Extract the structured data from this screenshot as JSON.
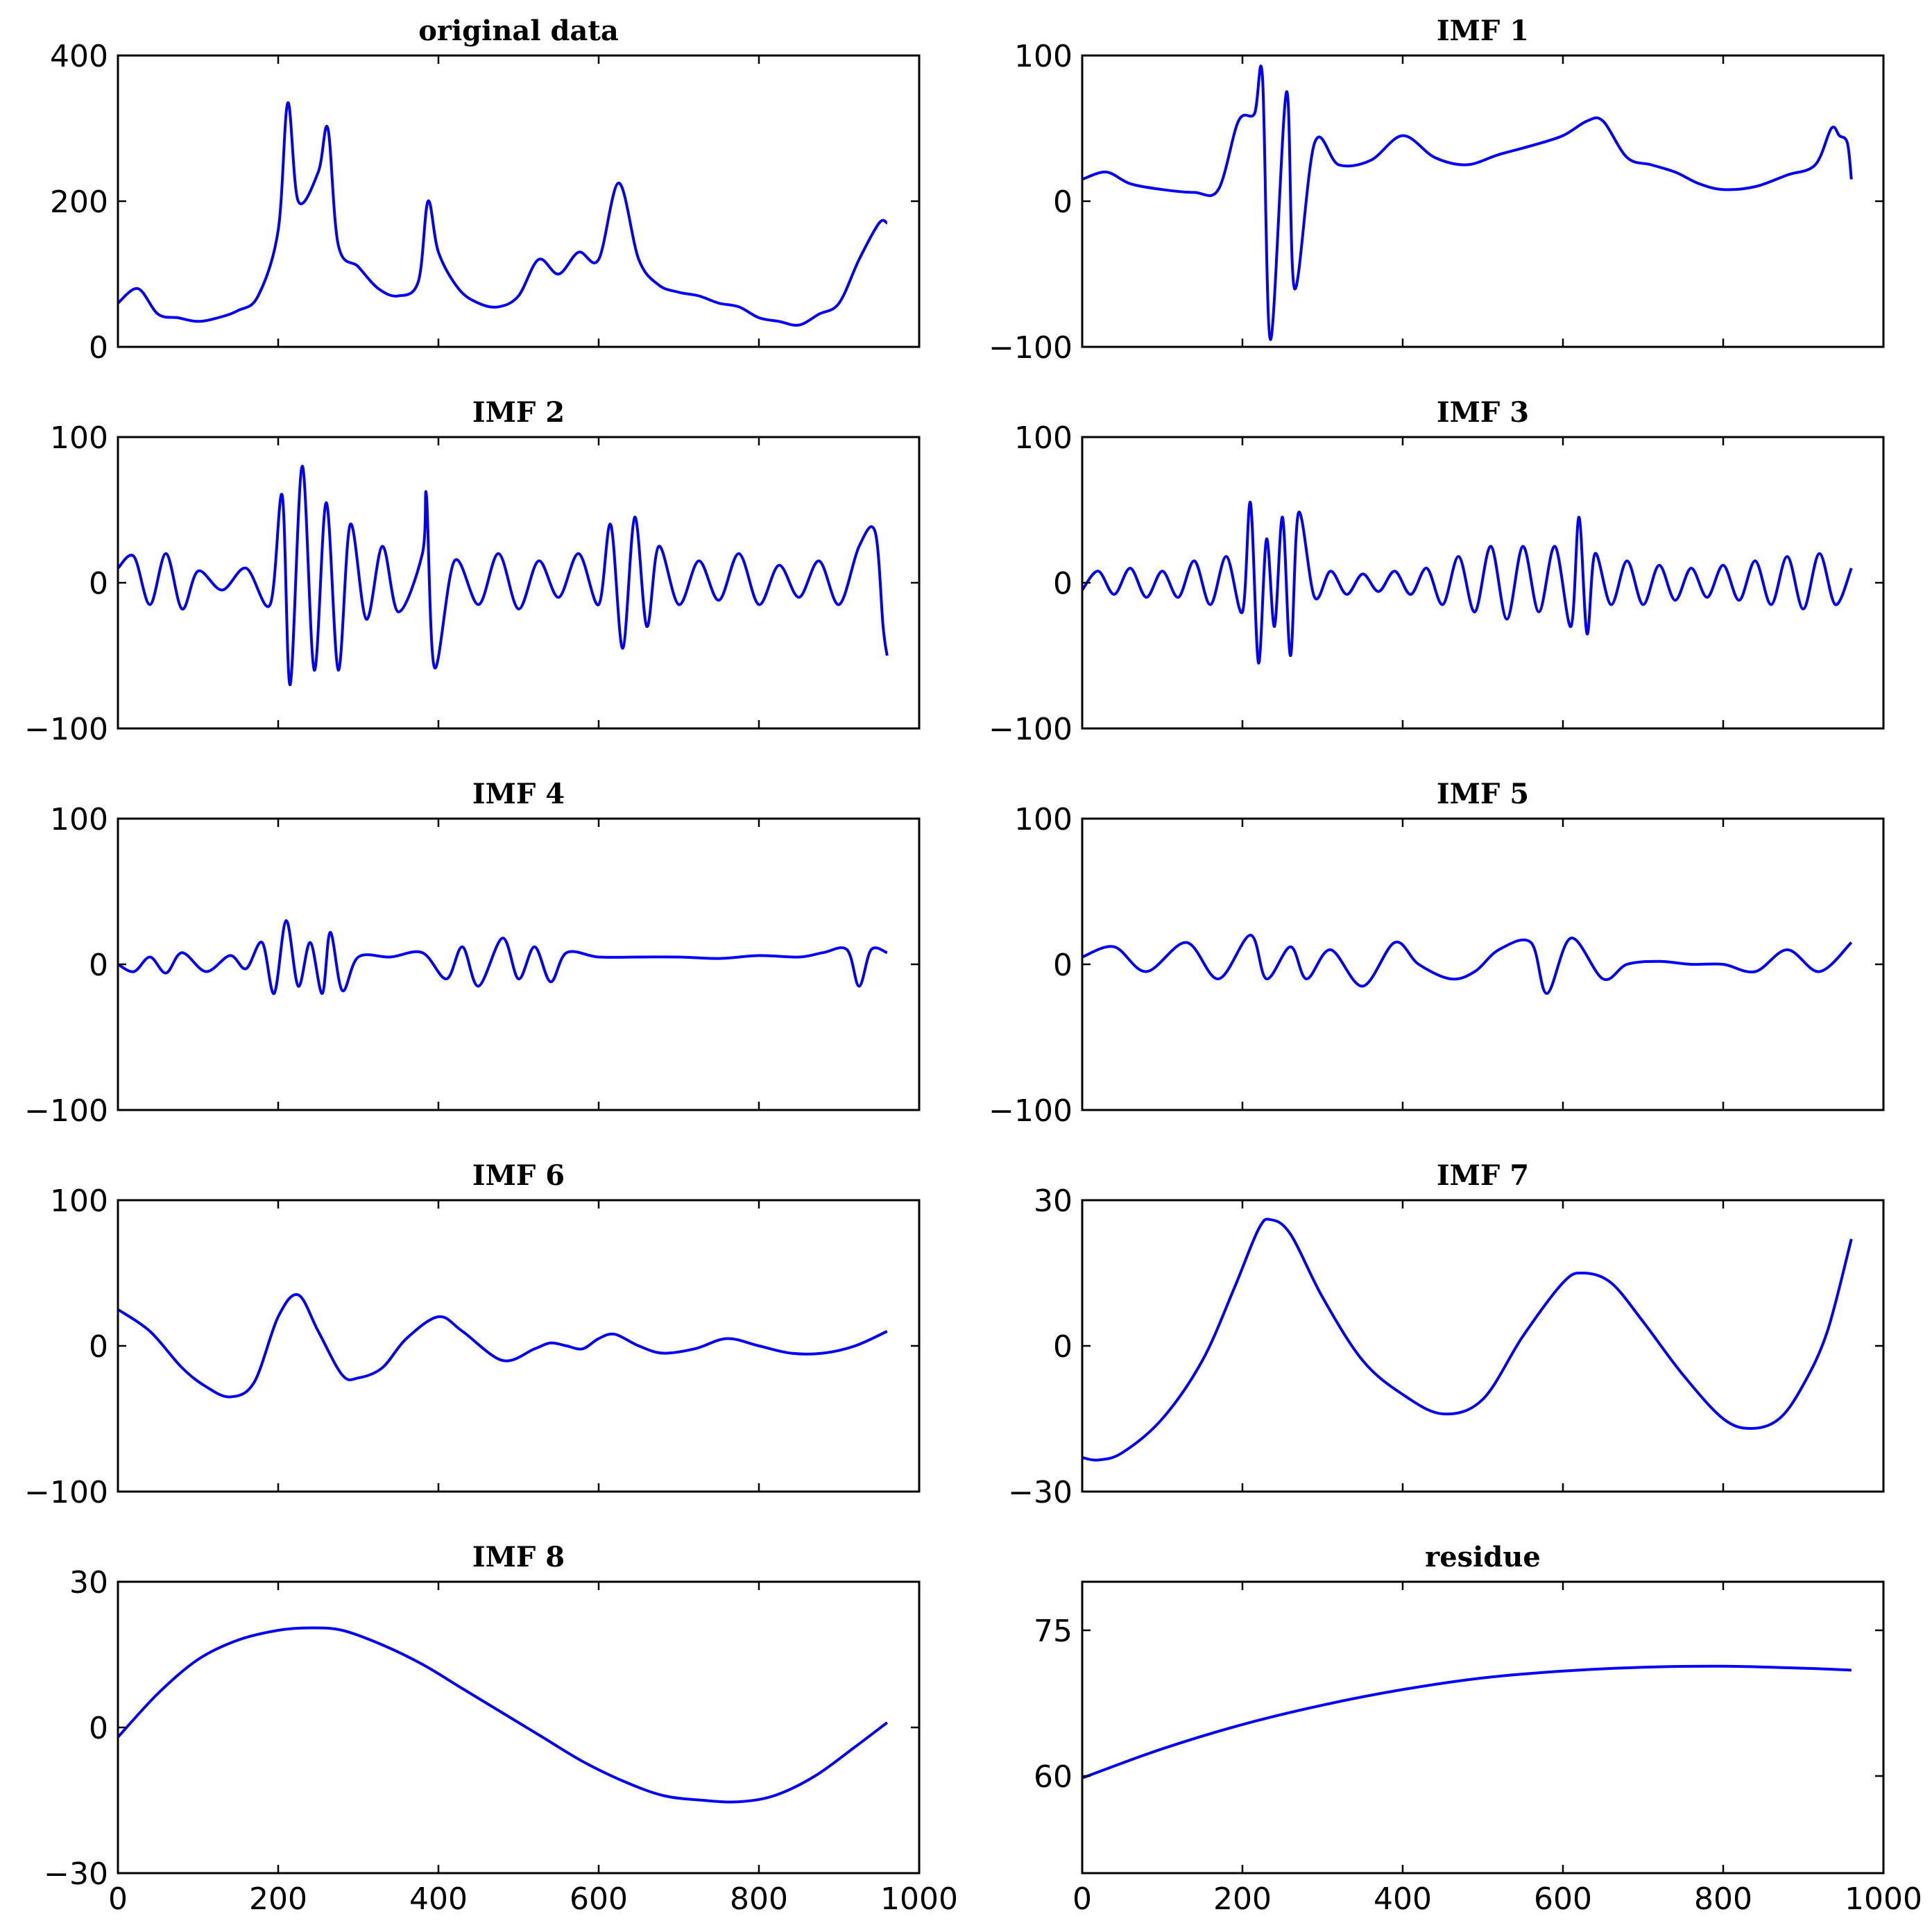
{
  "chart_data": [
    {
      "type": "line",
      "title": "original data",
      "xlim": [
        0,
        1000
      ],
      "ylim": [
        0,
        400
      ],
      "xticks": [
        "0",
        "200",
        "400",
        "600",
        "800",
        "1000"
      ],
      "yticks": [
        0,
        200,
        400
      ],
      "show_xticklabels": false,
      "grid": false,
      "color": "#0000ff",
      "x": [
        0,
        25,
        50,
        75,
        100,
        125,
        150,
        175,
        200,
        212,
        225,
        250,
        262,
        275,
        300,
        325,
        350,
        375,
        387,
        400,
        425,
        450,
        475,
        500,
        525,
        550,
        575,
        600,
        625,
        650,
        675,
        700,
        725,
        750,
        775,
        800,
        825,
        850,
        875,
        900,
        925,
        950,
        960
      ],
      "y": [
        60,
        80,
        45,
        40,
        35,
        40,
        50,
        70,
        160,
        335,
        200,
        240,
        300,
        140,
        110,
        80,
        70,
        90,
        200,
        130,
        80,
        60,
        55,
        70,
        120,
        100,
        130,
        120,
        225,
        120,
        85,
        75,
        70,
        60,
        55,
        40,
        35,
        30,
        45,
        60,
        120,
        170,
        170
      ]
    },
    {
      "type": "line",
      "title": "IMF 1",
      "xlim": [
        0,
        1000
      ],
      "ylim": [
        -100,
        100
      ],
      "xticks": [
        "0",
        "200",
        "400",
        "600",
        "800",
        "1000"
      ],
      "yticks": [
        -100,
        0,
        100
      ],
      "show_xticklabels": false,
      "grid": false,
      "color": "#0000ff",
      "x": [
        0,
        30,
        60,
        100,
        140,
        170,
        195,
        215,
        225,
        235,
        255,
        265,
        290,
        320,
        360,
        400,
        440,
        480,
        520,
        560,
        600,
        630,
        650,
        680,
        710,
        740,
        770,
        800,
        840,
        880,
        915,
        935,
        945,
        955,
        960
      ],
      "y": [
        15,
        20,
        12,
        8,
        6,
        8,
        55,
        60,
        85,
        -95,
        75,
        -60,
        40,
        25,
        28,
        45,
        30,
        25,
        32,
        38,
        45,
        55,
        55,
        30,
        25,
        20,
        12,
        8,
        10,
        18,
        25,
        50,
        45,
        40,
        15
      ]
    },
    {
      "type": "line",
      "title": "IMF 2",
      "xlim": [
        0,
        1000
      ],
      "ylim": [
        -100,
        100
      ],
      "xticks": [
        "0",
        "200",
        "400",
        "600",
        "800",
        "1000"
      ],
      "yticks": [
        -100,
        0,
        100
      ],
      "show_xticklabels": false,
      "grid": false,
      "color": "#0000ff",
      "x": [
        0,
        20,
        40,
        60,
        80,
        100,
        130,
        160,
        190,
        205,
        215,
        230,
        245,
        260,
        275,
        290,
        310,
        330,
        350,
        380,
        385,
        395,
        420,
        450,
        475,
        500,
        525,
        550,
        575,
        600,
        615,
        630,
        645,
        660,
        675,
        700,
        725,
        750,
        775,
        800,
        825,
        850,
        875,
        900,
        925,
        945,
        955,
        960
      ],
      "y": [
        10,
        18,
        -15,
        20,
        -18,
        8,
        -5,
        10,
        -15,
        60,
        -70,
        80,
        -60,
        55,
        -60,
        40,
        -25,
        25,
        -20,
        20,
        60,
        -58,
        15,
        -15,
        20,
        -18,
        15,
        -10,
        20,
        -15,
        40,
        -45,
        45,
        -30,
        25,
        -15,
        15,
        -12,
        20,
        -15,
        12,
        -10,
        15,
        -15,
        25,
        35,
        -30,
        -50
      ]
    },
    {
      "type": "line",
      "title": "IMF 3",
      "xlim": [
        0,
        1000
      ],
      "ylim": [
        -100,
        100
      ],
      "xticks": [
        "0",
        "200",
        "400",
        "600",
        "800",
        "1000"
      ],
      "yticks": [
        -100,
        0,
        100
      ],
      "show_xticklabels": false,
      "grid": false,
      "color": "#0000ff",
      "x": [
        0,
        20,
        40,
        60,
        80,
        100,
        120,
        140,
        160,
        180,
        200,
        210,
        220,
        230,
        240,
        250,
        260,
        270,
        290,
        310,
        330,
        350,
        370,
        390,
        410,
        430,
        450,
        470,
        490,
        510,
        530,
        550,
        570,
        590,
        610,
        620,
        630,
        640,
        660,
        680,
        700,
        720,
        740,
        760,
        780,
        800,
        820,
        840,
        860,
        880,
        900,
        920,
        940,
        960
      ],
      "y": [
        -5,
        8,
        -8,
        10,
        -10,
        8,
        -10,
        15,
        -15,
        18,
        -20,
        55,
        -55,
        30,
        -30,
        45,
        -50,
        48,
        -10,
        8,
        -8,
        6,
        -6,
        8,
        -8,
        10,
        -15,
        18,
        -20,
        25,
        -25,
        25,
        -20,
        25,
        -30,
        45,
        -35,
        20,
        -15,
        15,
        -15,
        12,
        -12,
        10,
        -10,
        12,
        -12,
        15,
        -15,
        18,
        -18,
        20,
        -15,
        10
      ]
    },
    {
      "type": "line",
      "title": "IMF 4",
      "xlim": [
        0,
        1000
      ],
      "ylim": [
        -100,
        100
      ],
      "xticks": [
        "0",
        "200",
        "400",
        "600",
        "800",
        "1000"
      ],
      "yticks": [
        -100,
        0,
        100
      ],
      "show_xticklabels": false,
      "grid": false,
      "color": "#0000ff",
      "x": [
        0,
        20,
        40,
        60,
        80,
        110,
        140,
        160,
        180,
        195,
        210,
        225,
        240,
        255,
        265,
        280,
        300,
        340,
        380,
        410,
        430,
        450,
        480,
        500,
        520,
        540,
        560,
        600,
        650,
        700,
        750,
        800,
        850,
        880,
        910,
        925,
        940,
        960
      ],
      "y": [
        0,
        -5,
        5,
        -6,
        8,
        -5,
        6,
        -3,
        15,
        -20,
        30,
        -15,
        15,
        -20,
        22,
        -18,
        5,
        5,
        8,
        -10,
        12,
        -15,
        18,
        -10,
        12,
        -12,
        8,
        5,
        5,
        5,
        4,
        6,
        5,
        8,
        10,
        -15,
        10,
        8
      ]
    },
    {
      "type": "line",
      "title": "IMF 5",
      "xlim": [
        0,
        1000
      ],
      "ylim": [
        -100,
        100
      ],
      "xticks": [
        "0",
        "200",
        "400",
        "600",
        "800",
        "1000"
      ],
      "yticks": [
        -100,
        0,
        100
      ],
      "show_xticklabels": false,
      "grid": false,
      "color": "#0000ff",
      "x": [
        0,
        40,
        80,
        130,
        170,
        210,
        230,
        260,
        280,
        310,
        350,
        390,
        420,
        460,
        490,
        520,
        560,
        580,
        610,
        650,
        680,
        720,
        760,
        800,
        840,
        880,
        920,
        960
      ],
      "y": [
        5,
        12,
        -5,
        15,
        -10,
        20,
        -10,
        12,
        -10,
        10,
        -15,
        15,
        0,
        -10,
        -5,
        10,
        15,
        -20,
        18,
        -10,
        0,
        2,
        0,
        0,
        -5,
        10,
        -5,
        15
      ]
    },
    {
      "type": "line",
      "title": "IMF 6",
      "xlim": [
        0,
        1000
      ],
      "ylim": [
        -100,
        100
      ],
      "xticks": [
        "0",
        "200",
        "400",
        "600",
        "800",
        "1000"
      ],
      "yticks": [
        -100,
        0,
        100
      ],
      "show_xticklabels": false,
      "grid": false,
      "color": "#0000ff",
      "x": [
        0,
        40,
        80,
        110,
        140,
        170,
        200,
        225,
        250,
        280,
        300,
        330,
        360,
        400,
        430,
        480,
        520,
        540,
        560,
        580,
        600,
        620,
        650,
        680,
        720,
        760,
        800,
        840,
        880,
        920,
        960
      ],
      "y": [
        25,
        10,
        -15,
        -28,
        -35,
        -25,
        20,
        35,
        10,
        -20,
        -22,
        -15,
        5,
        20,
        10,
        -10,
        -2,
        2,
        0,
        -2,
        5,
        8,
        0,
        -5,
        -2,
        5,
        0,
        -5,
        -5,
        0,
        10
      ]
    },
    {
      "type": "line",
      "title": "IMF 7",
      "xlim": [
        0,
        1000
      ],
      "ylim": [
        -30,
        30
      ],
      "xticks": [
        "0",
        "200",
        "400",
        "600",
        "800",
        "1000"
      ],
      "yticks": [
        -30,
        0,
        30
      ],
      "show_xticklabels": false,
      "grid": false,
      "color": "#0000ff",
      "x": [
        0,
        20,
        50,
        100,
        150,
        190,
        220,
        235,
        260,
        300,
        350,
        400,
        450,
        500,
        550,
        600,
        625,
        660,
        700,
        750,
        800,
        835,
        870,
        900,
        930,
        960
      ],
      "y": [
        -23,
        -23.5,
        -22,
        -15,
        -3,
        12,
        24,
        26,
        23,
        10,
        -3,
        -10,
        -14,
        -11,
        2,
        13,
        15,
        13,
        5,
        -6,
        -15,
        -17,
        -15,
        -8,
        3,
        22
      ]
    },
    {
      "type": "line",
      "title": "IMF 8",
      "xlim": [
        0,
        1000
      ],
      "ylim": [
        -30,
        30
      ],
      "xticks": [
        "0",
        "200",
        "400",
        "600",
        "800",
        "1000"
      ],
      "yticks": [
        -30,
        0,
        30
      ],
      "show_xticklabels": true,
      "grid": false,
      "color": "#0000ff",
      "x": [
        0,
        50,
        100,
        150,
        200,
        240,
        280,
        330,
        380,
        430,
        480,
        530,
        580,
        630,
        680,
        730,
        775,
        820,
        870,
        920,
        960
      ],
      "y": [
        -2,
        7,
        14,
        18,
        20,
        20.5,
        20,
        17,
        13,
        8,
        3,
        -2,
        -7,
        -11,
        -14,
        -15,
        -15.3,
        -14,
        -10,
        -4,
        1
      ]
    },
    {
      "type": "line",
      "title": "residue",
      "xlim": [
        0,
        1000
      ],
      "ylim": [
        50,
        80
      ],
      "xticks": [
        "0",
        "200",
        "400",
        "600",
        "800",
        "1000"
      ],
      "yticks": [
        60,
        75
      ],
      "show_xticklabels": true,
      "grid": false,
      "color": "#0000ff",
      "x": [
        0,
        100,
        200,
        300,
        400,
        500,
        600,
        700,
        800,
        900,
        960
      ],
      "y": [
        59.8,
        62.8,
        65.3,
        67.3,
        68.9,
        70.1,
        70.8,
        71.2,
        71.3,
        71.1,
        70.9
      ]
    }
  ]
}
